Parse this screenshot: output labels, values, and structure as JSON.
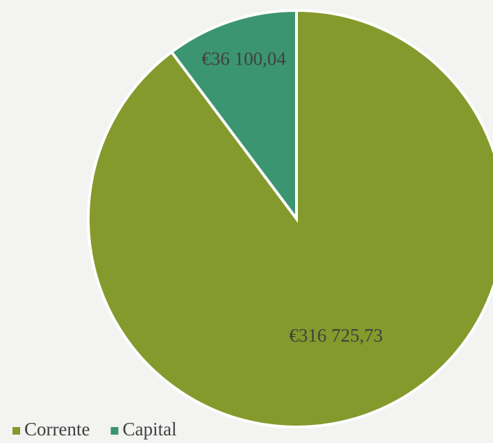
{
  "chart_data": {
    "type": "pie",
    "categories": [
      "Corrente",
      "Capital"
    ],
    "values": [
      316725.73,
      36100.04
    ],
    "value_labels": [
      "€316 725,73",
      "€36 100,04"
    ],
    "colors": [
      "#859a2c",
      "#3b9571"
    ],
    "legend": "bottom-left"
  }
}
